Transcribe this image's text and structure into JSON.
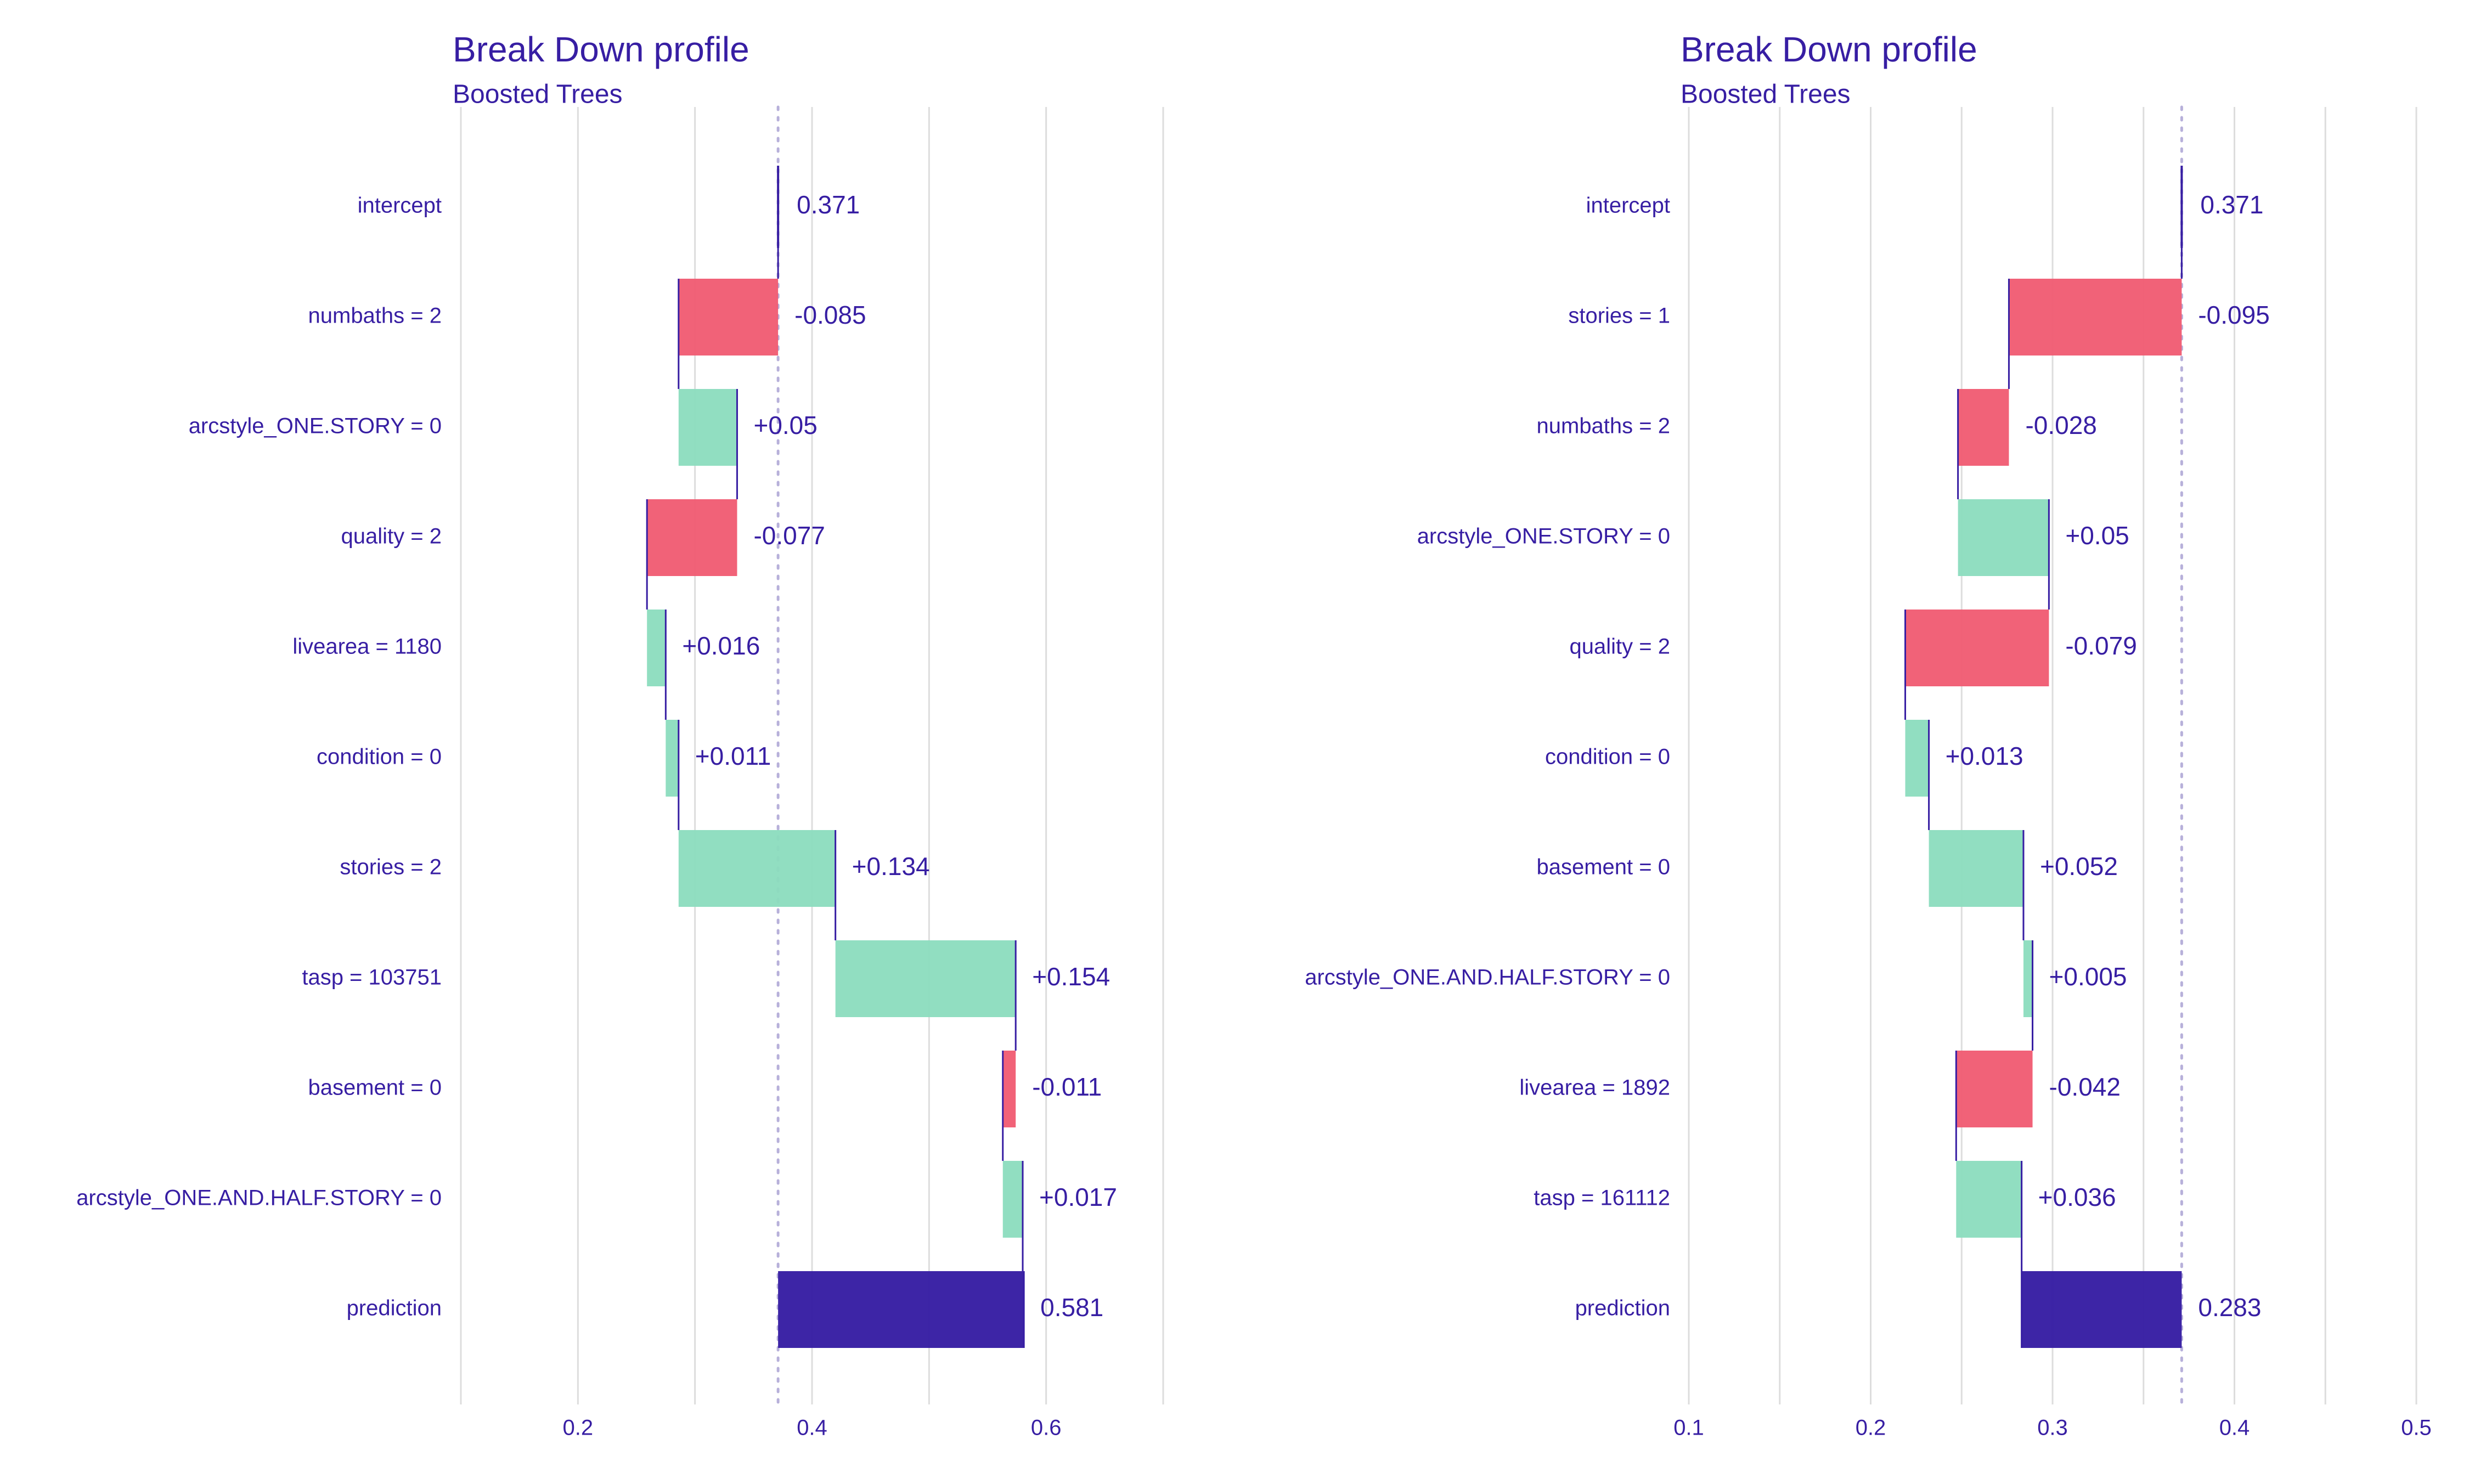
{
  "colors": {
    "text": "#371ea3",
    "positive": "#8bdcbe",
    "negative": "#f05a71",
    "prediction": "#371ea3",
    "connector": "#371ea3",
    "grid": "#dddddd",
    "baseline": "#b7b0da"
  },
  "chart_data": [
    {
      "type": "waterfall",
      "title": "Break Down profile",
      "subtitle": "Boosted Trees",
      "xlim": [
        0.1,
        0.7
      ],
      "xticks": [
        0.2,
        0.4,
        0.6
      ],
      "xtick_labels": [
        "0.2",
        "0.4",
        "0.6"
      ],
      "grid": true,
      "intercept": 0.371,
      "rows": [
        {
          "label": "intercept",
          "kind": "intercept",
          "value": 0.371,
          "text": "0.371"
        },
        {
          "label": "numbaths = 2",
          "kind": "contribution",
          "value": -0.085,
          "text": "-0.085"
        },
        {
          "label": "arcstyle_ONE.STORY = 0",
          "kind": "contribution",
          "value": 0.05,
          "text": "+0.05"
        },
        {
          "label": "quality = 2",
          "kind": "contribution",
          "value": -0.077,
          "text": "-0.077"
        },
        {
          "label": "livearea = 1180",
          "kind": "contribution",
          "value": 0.016,
          "text": "+0.016"
        },
        {
          "label": "condition = 0",
          "kind": "contribution",
          "value": 0.011,
          "text": "+0.011"
        },
        {
          "label": "stories = 2",
          "kind": "contribution",
          "value": 0.134,
          "text": "+0.134"
        },
        {
          "label": "tasp = 103751",
          "kind": "contribution",
          "value": 0.154,
          "text": "+0.154"
        },
        {
          "label": "basement = 0",
          "kind": "contribution",
          "value": -0.011,
          "text": "-0.011"
        },
        {
          "label": "arcstyle_ONE.AND.HALF.STORY = 0",
          "kind": "contribution",
          "value": 0.017,
          "text": "+0.017"
        },
        {
          "label": "prediction",
          "kind": "prediction",
          "value": 0.581,
          "text": "0.581"
        }
      ]
    },
    {
      "type": "waterfall",
      "title": "Break Down profile",
      "subtitle": "Boosted Trees",
      "xlim": [
        0.1,
        0.5
      ],
      "xticks": [
        0.1,
        0.2,
        0.3,
        0.4,
        0.5
      ],
      "xtick_labels": [
        "0.1",
        "0.2",
        "0.3",
        "0.4",
        "0.5"
      ],
      "grid": true,
      "intercept": 0.371,
      "rows": [
        {
          "label": "intercept",
          "kind": "intercept",
          "value": 0.371,
          "text": "0.371"
        },
        {
          "label": "stories = 1",
          "kind": "contribution",
          "value": -0.095,
          "text": "-0.095"
        },
        {
          "label": "numbaths = 2",
          "kind": "contribution",
          "value": -0.028,
          "text": "-0.028"
        },
        {
          "label": "arcstyle_ONE.STORY = 0",
          "kind": "contribution",
          "value": 0.05,
          "text": "+0.05"
        },
        {
          "label": "quality = 2",
          "kind": "contribution",
          "value": -0.079,
          "text": "-0.079"
        },
        {
          "label": "condition = 0",
          "kind": "contribution",
          "value": 0.013,
          "text": "+0.013"
        },
        {
          "label": "basement = 0",
          "kind": "contribution",
          "value": 0.052,
          "text": "+0.052"
        },
        {
          "label": "arcstyle_ONE.AND.HALF.STORY = 0",
          "kind": "contribution",
          "value": 0.005,
          "text": "+0.005"
        },
        {
          "label": "livearea = 1892",
          "kind": "contribution",
          "value": -0.042,
          "text": "-0.042"
        },
        {
          "label": "tasp = 161112",
          "kind": "contribution",
          "value": 0.036,
          "text": "+0.036"
        },
        {
          "label": "prediction",
          "kind": "prediction",
          "value": 0.283,
          "text": "0.283"
        }
      ]
    }
  ]
}
